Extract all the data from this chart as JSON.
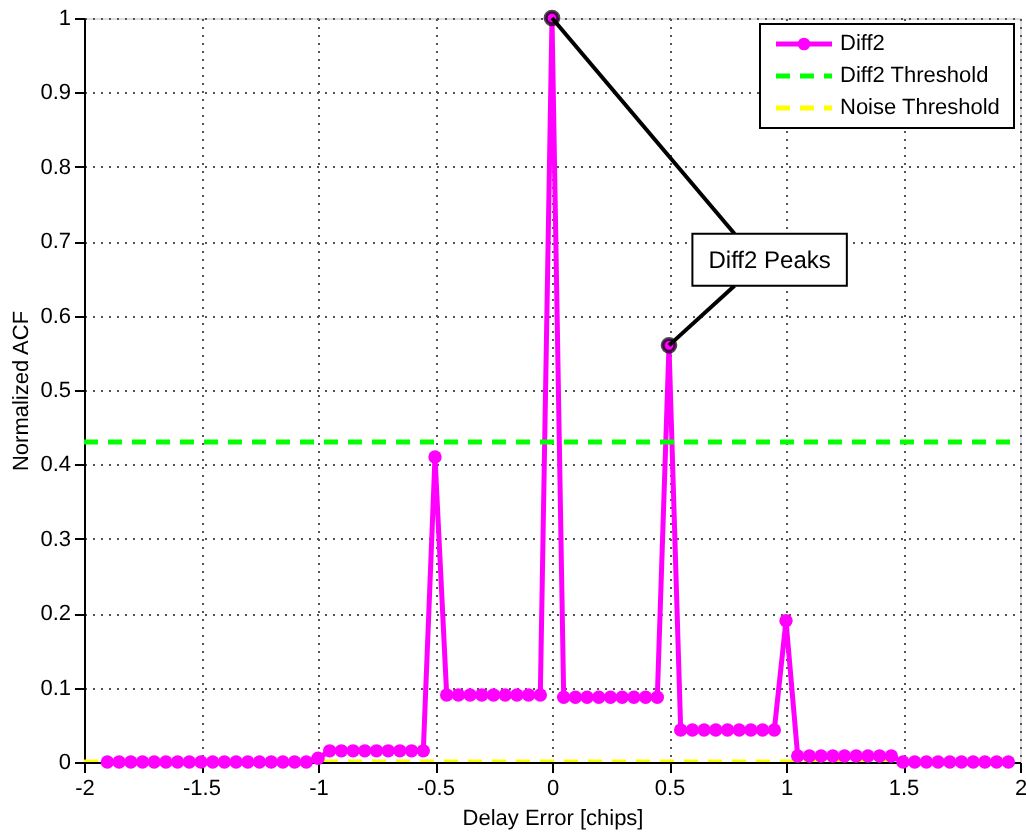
{
  "chart_data": {
    "type": "line",
    "xlabel": "Delay Error [chips]",
    "ylabel": "Normalized ACF",
    "xlim": [
      -2,
      2
    ],
    "xticks": [
      -2,
      -1.5,
      -1,
      -0.5,
      0,
      0.5,
      1,
      1.5,
      2
    ],
    "ylim": [
      0,
      1
    ],
    "yticks": [
      0,
      0.1,
      0.2,
      0.3,
      0.4,
      0.5,
      0.6,
      0.7,
      0.8,
      0.9,
      1
    ],
    "grid": true,
    "legend": "top right",
    "annotations": [
      {
        "text": "Diff2 Peaks",
        "x": 0.5,
        "y": 0.56
      }
    ],
    "series": [
      {
        "name": "Diff2",
        "color": "#ff00ff",
        "marker": "circle",
        "line_style": "solid",
        "x": [
          -1.9,
          -1.85,
          -1.8,
          -1.75,
          -1.7,
          -1.65,
          -1.6,
          -1.55,
          -1.5,
          -1.45,
          -1.4,
          -1.35,
          -1.3,
          -1.25,
          -1.2,
          -1.15,
          -1.1,
          -1.05,
          -1.0,
          -0.95,
          -0.9,
          -0.85,
          -0.8,
          -0.75,
          -0.7,
          -0.65,
          -0.6,
          -0.55,
          -0.5,
          -0.45,
          -0.4,
          -0.35,
          -0.3,
          -0.25,
          -0.2,
          -0.15,
          -0.1,
          -0.05,
          0,
          0.05,
          0.1,
          0.15,
          0.2,
          0.25,
          0.3,
          0.35,
          0.4,
          0.45,
          0.5,
          0.55,
          0.6,
          0.65,
          0.7,
          0.75,
          0.8,
          0.85,
          0.9,
          0.95,
          1.0,
          1.05,
          1.1,
          1.15,
          1.2,
          1.25,
          1.3,
          1.35,
          1.4,
          1.45,
          1.5,
          1.55,
          1.6,
          1.65,
          1.7,
          1.75,
          1.8,
          1.85,
          1.9,
          1.95
        ],
        "values": [
          0,
          0,
          0,
          0,
          0,
          0,
          0,
          0,
          0,
          0,
          0,
          0,
          0,
          0,
          0,
          0,
          0,
          0,
          0.005,
          0.015,
          0.015,
          0.015,
          0.015,
          0.015,
          0.015,
          0.015,
          0.015,
          0.015,
          0.41,
          0.09,
          0.09,
          0.09,
          0.09,
          0.09,
          0.09,
          0.09,
          0.09,
          0.09,
          1.0,
          0.087,
          0.087,
          0.087,
          0.087,
          0.087,
          0.087,
          0.087,
          0.087,
          0.087,
          0.56,
          0.043,
          0.043,
          0.043,
          0.043,
          0.043,
          0.043,
          0.043,
          0.043,
          0.043,
          0.19,
          0.008,
          0.008,
          0.008,
          0.008,
          0.008,
          0.008,
          0.008,
          0.008,
          0.008,
          0,
          0,
          0,
          0,
          0,
          0,
          0,
          0,
          0,
          0
        ]
      },
      {
        "name": "Diff2 Threshold",
        "color": "#00ff00",
        "line_style": "dashed",
        "x": [
          -2,
          2
        ],
        "values": [
          0.43,
          0.43
        ]
      },
      {
        "name": "Noise Threshold",
        "color": "#ffff00",
        "line_style": "dashed",
        "x": [
          -2,
          2
        ],
        "values": [
          0,
          0
        ]
      }
    ]
  }
}
